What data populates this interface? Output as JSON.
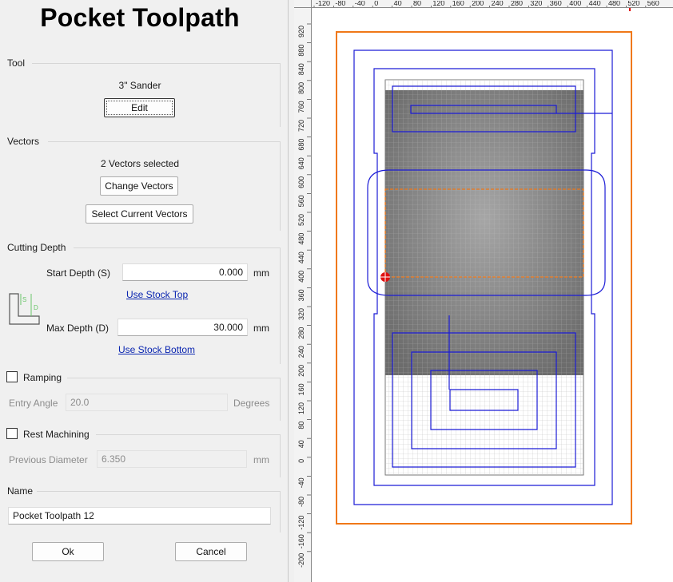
{
  "title": "Pocket Toolpath",
  "tool": {
    "section": "Tool",
    "name": "3\" Sander",
    "edit_label": "Edit"
  },
  "vectors": {
    "section": "Vectors",
    "status": "2 Vectors selected",
    "change_label": "Change Vectors",
    "select_current_label": "Select Current Vectors"
  },
  "cutting_depth": {
    "section": "Cutting Depth",
    "start_label": "Start Depth (S)",
    "start_value": "0.000",
    "start_unit": "mm",
    "use_top_label": "Use Stock Top",
    "max_label": "Max Depth (D)",
    "max_value": "30.000",
    "max_unit": "mm",
    "use_bottom_label": "Use Stock Bottom",
    "icon_s": "S",
    "icon_d": "D"
  },
  "ramping": {
    "label": "Ramping",
    "checked": false,
    "angle_label": "Entry Angle",
    "angle_value": "20.0",
    "angle_unit": "Degrees"
  },
  "rest_machining": {
    "label": "Rest Machining",
    "checked": false,
    "diameter_label": "Previous Diameter",
    "diameter_value": "6.350",
    "diameter_unit": "mm"
  },
  "name": {
    "section": "Name",
    "value": "Pocket Toolpath 12"
  },
  "footer": {
    "ok_label": "Ok",
    "cancel_label": "Cancel"
  },
  "rulers": {
    "top_ticks": [
      "-120",
      "-80",
      "-40",
      "0",
      "40",
      "80",
      "120",
      "160",
      "200",
      "240",
      "280",
      "320",
      "360",
      "400",
      "440",
      "480",
      "520",
      "560"
    ],
    "left_ticks": [
      "920",
      "880",
      "840",
      "800",
      "760",
      "720",
      "680",
      "640",
      "600",
      "560",
      "520",
      "480",
      "440",
      "400",
      "360",
      "320",
      "280",
      "240",
      "200",
      "160",
      "120",
      "80",
      "40",
      "0",
      "-40",
      "-80",
      "-120",
      "-160",
      "-200"
    ]
  },
  "colors": {
    "boundary": "#f07818",
    "toolpath": "#1c1cd6",
    "stock_dark": "#7a7a7a",
    "marker": "#e01010"
  }
}
